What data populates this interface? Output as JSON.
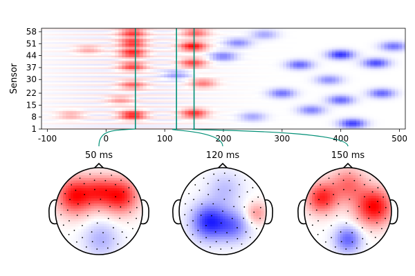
{
  "chart_data": [
    {
      "type": "heatmap",
      "title": "",
      "xlabel": "",
      "ylabel": "Sensor",
      "xlim": [
        -110,
        510
      ],
      "ylim": [
        1,
        60
      ],
      "x_ticks": [
        -100,
        0,
        100,
        200,
        300,
        400,
        500
      ],
      "y_ticks": [
        1,
        8,
        15,
        22,
        30,
        37,
        44,
        51,
        58
      ],
      "colormap": {
        "negative": "#0000ff",
        "zero": "#ffffff",
        "positive": "#ff0000"
      },
      "marker_color": "#008f76",
      "time_markers_ms": [
        50,
        120,
        150
      ],
      "features": [
        {
          "t": 45,
          "s": 52,
          "v": 0.8
        },
        {
          "t": 45,
          "s": 38,
          "v": 0.7
        },
        {
          "t": 45,
          "s": 46,
          "v": 0.85
        },
        {
          "t": 45,
          "s": 9,
          "v": 0.9
        },
        {
          "t": 45,
          "s": 27,
          "v": 0.55
        },
        {
          "t": 45,
          "s": 58,
          "v": 0.75
        },
        {
          "t": 25,
          "s": 18,
          "v": 0.35
        },
        {
          "t": -30,
          "s": 48,
          "v": 0.3
        },
        {
          "t": -60,
          "s": 9,
          "v": 0.3
        },
        {
          "t": 148,
          "s": 50,
          "v": 0.95
        },
        {
          "t": 148,
          "s": 40,
          "v": 0.7
        },
        {
          "t": 150,
          "s": 10,
          "v": 0.8
        },
        {
          "t": 152,
          "s": 58,
          "v": 0.6
        },
        {
          "t": 165,
          "s": 28,
          "v": 0.5
        },
        {
          "t": 120,
          "s": 33,
          "v": -0.35
        },
        {
          "t": 200,
          "s": 44,
          "v": -0.5
        },
        {
          "t": 225,
          "s": 52,
          "v": -0.45
        },
        {
          "t": 300,
          "s": 22,
          "v": -0.55
        },
        {
          "t": 330,
          "s": 39,
          "v": -0.6
        },
        {
          "t": 350,
          "s": 12,
          "v": -0.5
        },
        {
          "t": 400,
          "s": 45,
          "v": -0.8
        },
        {
          "t": 420,
          "s": 4,
          "v": -0.75
        },
        {
          "t": 400,
          "s": 18,
          "v": -0.6
        },
        {
          "t": 460,
          "s": 40,
          "v": -0.7
        },
        {
          "t": 470,
          "s": 22,
          "v": -0.6
        },
        {
          "t": 380,
          "s": 30,
          "v": -0.45
        },
        {
          "t": 490,
          "s": 50,
          "v": -0.55
        },
        {
          "t": 270,
          "s": 57,
          "v": -0.35
        },
        {
          "t": 250,
          "s": 8,
          "v": -0.35
        }
      ]
    },
    {
      "type": "heatmap",
      "subtype": "topomap",
      "title": "50 ms",
      "blobs": [
        {
          "x": -0.55,
          "y": 0.35,
          "r": 0.42,
          "v": 0.95
        },
        {
          "x": 0.5,
          "y": 0.35,
          "r": 0.4,
          "v": 0.9
        },
        {
          "x": 0.0,
          "y": 0.45,
          "r": 0.35,
          "v": 0.6
        },
        {
          "x": 0.05,
          "y": -0.65,
          "r": 0.4,
          "v": -0.3
        }
      ]
    },
    {
      "type": "heatmap",
      "subtype": "topomap",
      "title": "120 ms",
      "blobs": [
        {
          "x": -0.3,
          "y": -0.25,
          "r": 0.4,
          "v": -0.85
        },
        {
          "x": 0.05,
          "y": 0.5,
          "r": 0.4,
          "v": -0.25
        },
        {
          "x": 0.25,
          "y": -0.35,
          "r": 0.35,
          "v": -0.5
        },
        {
          "x": 0.78,
          "y": -0.05,
          "r": 0.25,
          "v": 0.4
        }
      ]
    },
    {
      "type": "heatmap",
      "subtype": "topomap",
      "title": "150 ms",
      "blobs": [
        {
          "x": 0.6,
          "y": 0.1,
          "r": 0.42,
          "v": 1.0
        },
        {
          "x": -0.6,
          "y": 0.3,
          "r": 0.35,
          "v": 0.85
        },
        {
          "x": 0.0,
          "y": 0.6,
          "r": 0.4,
          "v": 0.55
        },
        {
          "x": 0.0,
          "y": -0.65,
          "r": 0.3,
          "v": -0.6
        }
      ]
    }
  ]
}
